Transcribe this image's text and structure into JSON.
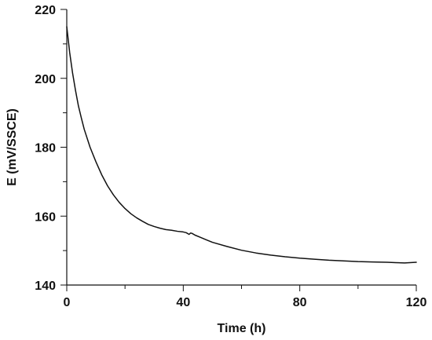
{
  "chart_data": {
    "type": "line",
    "title": "",
    "xlabel": "Time (h)",
    "ylabel": "E (mV/SSCE)",
    "xlim": [
      0,
      120
    ],
    "ylim": [
      140,
      220
    ],
    "x_major_ticks": [
      0,
      40,
      80,
      120
    ],
    "x_minor_ticks": [
      20,
      60,
      100
    ],
    "y_major_ticks": [
      140,
      160,
      180,
      200,
      220
    ],
    "y_minor_ticks": [
      150,
      170,
      190,
      210
    ],
    "grid": false,
    "legend": "none",
    "line_color": "#111111",
    "series": [
      {
        "x": [
          0,
          1,
          2,
          3,
          4,
          5,
          6,
          8,
          10,
          12,
          14,
          16,
          18,
          20,
          22,
          24,
          26,
          28,
          30,
          32,
          34,
          36,
          38,
          40,
          41,
          42,
          42.5,
          43,
          44,
          46,
          48,
          50,
          55,
          60,
          65,
          70,
          75,
          80,
          85,
          90,
          95,
          100,
          105,
          110,
          113,
          116,
          120
        ],
        "y": [
          215,
          207.5,
          201.5,
          196.5,
          192,
          188.5,
          185.2,
          180,
          175.8,
          172,
          168.8,
          166.2,
          164,
          162.2,
          160.7,
          159.5,
          158.5,
          157.6,
          157,
          156.5,
          156.1,
          155.9,
          155.6,
          155.4,
          155.2,
          154.7,
          155.1,
          155,
          154.5,
          153.8,
          153.1,
          152.4,
          151.2,
          150.1,
          149.3,
          148.7,
          148.2,
          147.8,
          147.5,
          147.2,
          147,
          146.8,
          146.7,
          146.6,
          146.5,
          146.4,
          146.6
        ]
      }
    ]
  }
}
